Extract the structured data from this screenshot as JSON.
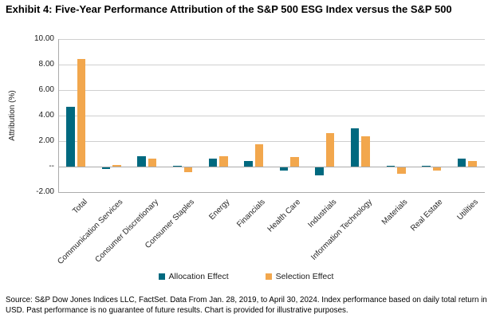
{
  "title": "Exhibit 4: Five-Year Performance Attribution of the S&P 500 ESG Index versus the S&P 500",
  "chart_data": {
    "type": "bar",
    "title": "Exhibit 4: Five-Year Performance Attribution of the S&P 500 ESG Index versus the S&P 500",
    "xlabel": "",
    "ylabel": "Attribution (%)",
    "ylim": [
      -2.0,
      10.0
    ],
    "ytick_step": 2.0,
    "ytick_labels": [
      "10.00",
      "8.00",
      "6.00",
      "4.00",
      "2.00",
      "--",
      "-2.00"
    ],
    "grid": true,
    "legend_position": "bottom",
    "categories": [
      "Total",
      "Communication Services",
      "Consumer Discretionary",
      "Consumer Staples",
      "Energy",
      "Financials",
      "Health Care",
      "Industrials",
      "Information Technology",
      "Materials",
      "Real Estate",
      "Utilities"
    ],
    "series": [
      {
        "name": "Allocation Effect",
        "color": "#00697F",
        "values": [
          4.7,
          -0.1,
          0.8,
          0.05,
          0.65,
          0.45,
          -0.25,
          -0.65,
          3.0,
          0.05,
          0.05,
          0.6
        ]
      },
      {
        "name": "Selection Effect",
        "color": "#F2A74D",
        "values": [
          8.45,
          0.15,
          0.65,
          -0.35,
          0.8,
          1.75,
          0.75,
          2.6,
          2.35,
          -0.5,
          -0.25,
          0.45
        ]
      }
    ]
  },
  "footer": {
    "source": "Source: S&P Dow Jones Indices LLC, FactSet. Data From Jan. 28, 2019, to April 30, 2024. Index performance based on daily total return in USD. Past performance is no guarantee of future results. Chart is provided for illustrative purposes."
  }
}
